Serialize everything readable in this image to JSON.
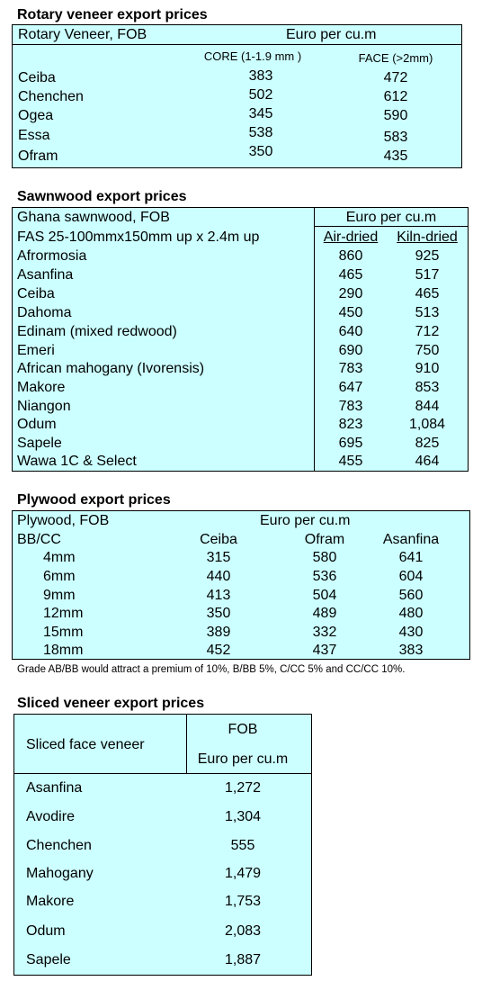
{
  "rotary": {
    "title": "Rotary veneer export prices",
    "head_left": "Rotary Veneer,  FOB",
    "head_right": "Euro  per cu.m",
    "col_core": "CORE (1-1.9 mm )",
    "col_face": "FACE (>2mm)",
    "rows": [
      {
        "name": "Ceiba",
        "core": "383",
        "face": "472"
      },
      {
        "name": "Chenchen",
        "core": "502",
        "face": "612"
      },
      {
        "name": "Ogea",
        "core": "345",
        "face": "590"
      },
      {
        "name": "Essa",
        "core": "538",
        "face": "583"
      },
      {
        "name": "Ofram",
        "core": "350",
        "face": "435"
      }
    ]
  },
  "sawn": {
    "title": "Sawnwood export prices",
    "head_left": "Ghana sawnwood, FOB",
    "head_right": "Euro per cu.m",
    "sub_left": "FAS 25-100mmx150mm up x 2.4m up",
    "col_air": "Air-dried",
    "col_kiln": "Kiln-dried",
    "rows": [
      {
        "name": "Afrormosia",
        "air": "860",
        "kiln": "925"
      },
      {
        "name": "Asanfina",
        "air": "465",
        "kiln": "517"
      },
      {
        "name": "Ceiba",
        "air": "290",
        "kiln": "465"
      },
      {
        "name": "Dahoma",
        "air": "450",
        "kiln": "513"
      },
      {
        "name": "Edinam (mixed redwood)",
        "air": "640",
        "kiln": "712"
      },
      {
        "name": "Emeri",
        "air": "690",
        "kiln": "750"
      },
      {
        "name": "African mahogany (Ivorensis)",
        "air": "783",
        "kiln": "910"
      },
      {
        "name": "Makore",
        "air": "647",
        "kiln": "853"
      },
      {
        "name": "Niangon",
        "air": "783",
        "kiln": "844"
      },
      {
        "name": "Odum",
        "air": "823",
        "kiln": "1,084"
      },
      {
        "name": "Sapele",
        "air": "695",
        "kiln": "825"
      },
      {
        "name": "Wawa 1C & Select",
        "air": "455",
        "kiln": "464"
      }
    ]
  },
  "ply": {
    "title": "Plywood export prices",
    "head_left": "Plywood, FOB",
    "head_right": "Euro per cu.m",
    "grade": "BB/CC",
    "col_ceiba": "Ceiba",
    "col_ofram": "Ofram",
    "col_asanfina": "Asanfina",
    "rows": [
      {
        "size": "4mm",
        "ceiba": "315",
        "ofram": "580",
        "asanfina": "641"
      },
      {
        "size": "6mm",
        "ceiba": "440",
        "ofram": "536",
        "asanfina": "604"
      },
      {
        "size": "9mm",
        "ceiba": "413",
        "ofram": "504",
        "asanfina": "560"
      },
      {
        "size": "12mm",
        "ceiba": "350",
        "ofram": "489",
        "asanfina": "480"
      },
      {
        "size": "15mm",
        "ceiba": "389",
        "ofram": "332",
        "asanfina": "430"
      },
      {
        "size": "18mm",
        "ceiba": "452",
        "ofram": "437",
        "asanfina": "383"
      }
    ],
    "note": "Grade AB/BB would attract a premium of 10%, B/BB 5%, C/CC 5% and CC/CC 10%."
  },
  "sliced": {
    "title": "Sliced veneer export prices",
    "head_left": "Sliced face veneer",
    "head_fob": "FOB",
    "head_euro": "Euro per cu.m",
    "rows": [
      {
        "name": "Asanfina",
        "value": "1,272"
      },
      {
        "name": "Avodire",
        "value": "1,304"
      },
      {
        "name": "Chenchen",
        "value": "555"
      },
      {
        "name": "Mahogany",
        "value": "1,479"
      },
      {
        "name": "Makore",
        "value": "1,753"
      },
      {
        "name": "Odum",
        "value": "2,083"
      },
      {
        "name": "Sapele",
        "value": "1,887"
      }
    ]
  }
}
